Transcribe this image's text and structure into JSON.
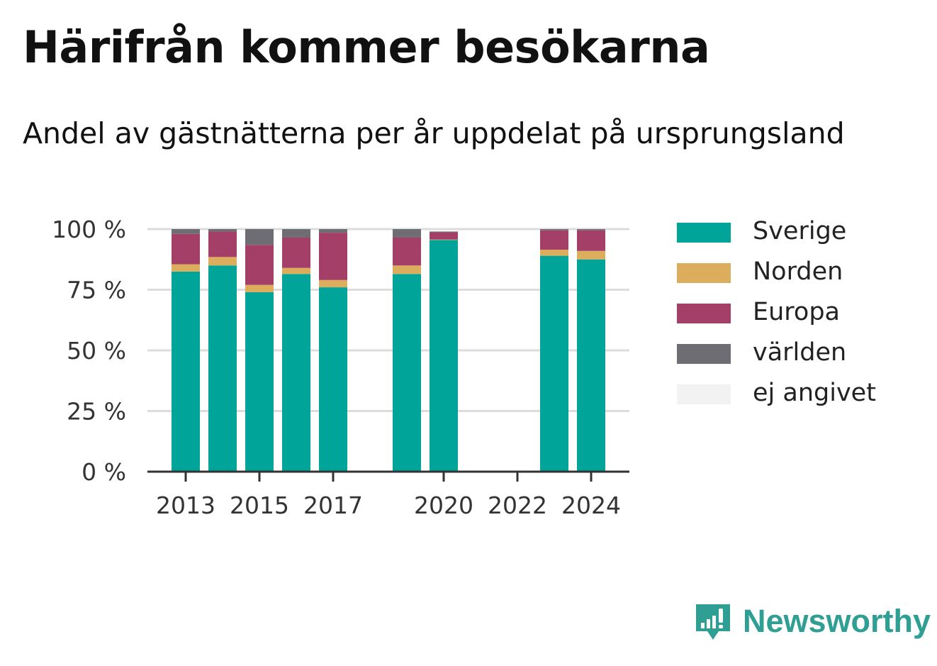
{
  "title": "Härifrån kommer besökarna",
  "subtitle": "Andel av gästnätterna per år uppdelat på ursprungsland",
  "brand": "Newsworthy",
  "colors": {
    "Sverige": "#00a499",
    "Norden": "#dcad5c",
    "Europa": "#a43f67",
    "världen": "#6d6d73",
    "ej angivet": "#f3f2f2",
    "brand": "#2f9e93"
  },
  "legend": [
    {
      "label": "Sverige",
      "color": "#00a499"
    },
    {
      "label": "Norden",
      "color": "#dcad5c"
    },
    {
      "label": "Europa",
      "color": "#a43f67"
    },
    {
      "label": "världen",
      "color": "#6d6d73"
    },
    {
      "label": "ej angivet",
      "color": "#f3f2f2"
    }
  ],
  "chart_data": {
    "type": "bar",
    "stacked": true,
    "categories": [
      2013,
      2014,
      2015,
      2016,
      2017,
      2018,
      2019,
      2020,
      2021,
      2022,
      2023,
      2024
    ],
    "x_tick_labels": [
      "2013",
      "2015",
      "2017",
      "2020",
      "2022",
      "2024"
    ],
    "x_ticks": [
      2013,
      2015,
      2017,
      2020,
      2022,
      2024
    ],
    "y_ticks": [
      0,
      25,
      50,
      75,
      100
    ],
    "y_tick_labels": [
      "0 %",
      "25 %",
      "50 %",
      "75 %",
      "100 %"
    ],
    "ylim": [
      0,
      100
    ],
    "grid": "horizontal",
    "legend_position": "right",
    "series": [
      {
        "name": "Sverige",
        "values": [
          82.5,
          85,
          74,
          81.5,
          76,
          null,
          81.5,
          95.5,
          null,
          null,
          89,
          87.5
        ]
      },
      {
        "name": "Norden",
        "values": [
          3,
          3.5,
          3,
          2.5,
          3,
          null,
          3.5,
          0.2,
          null,
          null,
          2.5,
          3.5
        ]
      },
      {
        "name": "Europa",
        "values": [
          12.5,
          10.5,
          16.5,
          12.5,
          19.5,
          null,
          11.5,
          3,
          null,
          null,
          8,
          8.5
        ]
      },
      {
        "name": "världen",
        "values": [
          2,
          1,
          6.5,
          3.5,
          1.5,
          null,
          3.5,
          0.3,
          null,
          null,
          0.5,
          0.5
        ]
      },
      {
        "name": "ej angivet",
        "values": [
          0,
          0,
          0,
          0,
          0,
          null,
          0,
          0,
          null,
          null,
          0,
          0
        ]
      }
    ]
  }
}
